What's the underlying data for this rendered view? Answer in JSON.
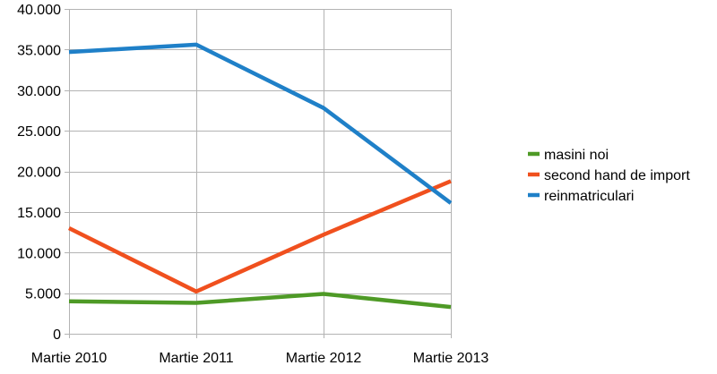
{
  "chart_data": {
    "type": "line",
    "categories": [
      "Martie 2010",
      "Martie 2011",
      "Martie 2012",
      "Martie 2013"
    ],
    "series": [
      {
        "name": "masini noi",
        "color": "#4e9a26",
        "values": [
          4000,
          3800,
          4900,
          3300
        ]
      },
      {
        "name": "second hand de import",
        "color": "#f0501e",
        "values": [
          13000,
          5200,
          12200,
          18800
        ]
      },
      {
        "name": "reinmatriculari",
        "color": "#1f80c8",
        "values": [
          34700,
          35600,
          27800,
          16100
        ]
      }
    ],
    "ylim": [
      0,
      40000
    ],
    "yticks": [
      0,
      5000,
      10000,
      15000,
      20000,
      25000,
      30000,
      35000,
      40000
    ],
    "ytick_labels": [
      "0",
      "5.000",
      "10.000",
      "15.000",
      "20.000",
      "25.000",
      "30.000",
      "35.000",
      "40.000"
    ],
    "grid": true,
    "legend_position": "right"
  }
}
